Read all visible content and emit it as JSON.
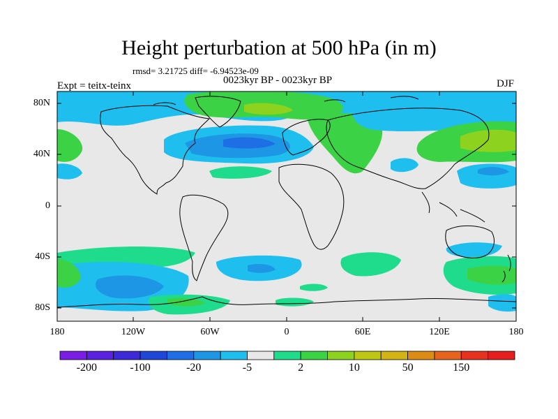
{
  "header": {
    "title": "Height perturbation at 500 hPa (in m)",
    "stats": "rmsd= 3.21725 diff= -6.94523e-09",
    "period": "0023kyr BP - 0023kyr BP",
    "experiment": "Expt = teitx-teinx",
    "season": "DJF"
  },
  "axes": {
    "y_ticks": [
      "80N",
      "40N",
      "0",
      "40S",
      "80S"
    ],
    "x_ticks": [
      "180",
      "120W",
      "60W",
      "0",
      "60E",
      "120E",
      "180"
    ]
  },
  "colorbar": {
    "colors": [
      "#7a1ee6",
      "#5a22e0",
      "#3c2ad8",
      "#1e46d8",
      "#1e6ee6",
      "#1e96e6",
      "#1ebeee",
      "#e8e8e8",
      "#1edc8c",
      "#3cd246",
      "#8cd21e",
      "#bec814",
      "#d2b414",
      "#dc8c14",
      "#e6641e",
      "#e6321e",
      "#e61e1e"
    ],
    "labels": [
      "-200",
      "-100",
      "-20",
      "-5",
      "2",
      "10",
      "50",
      "150"
    ]
  }
}
